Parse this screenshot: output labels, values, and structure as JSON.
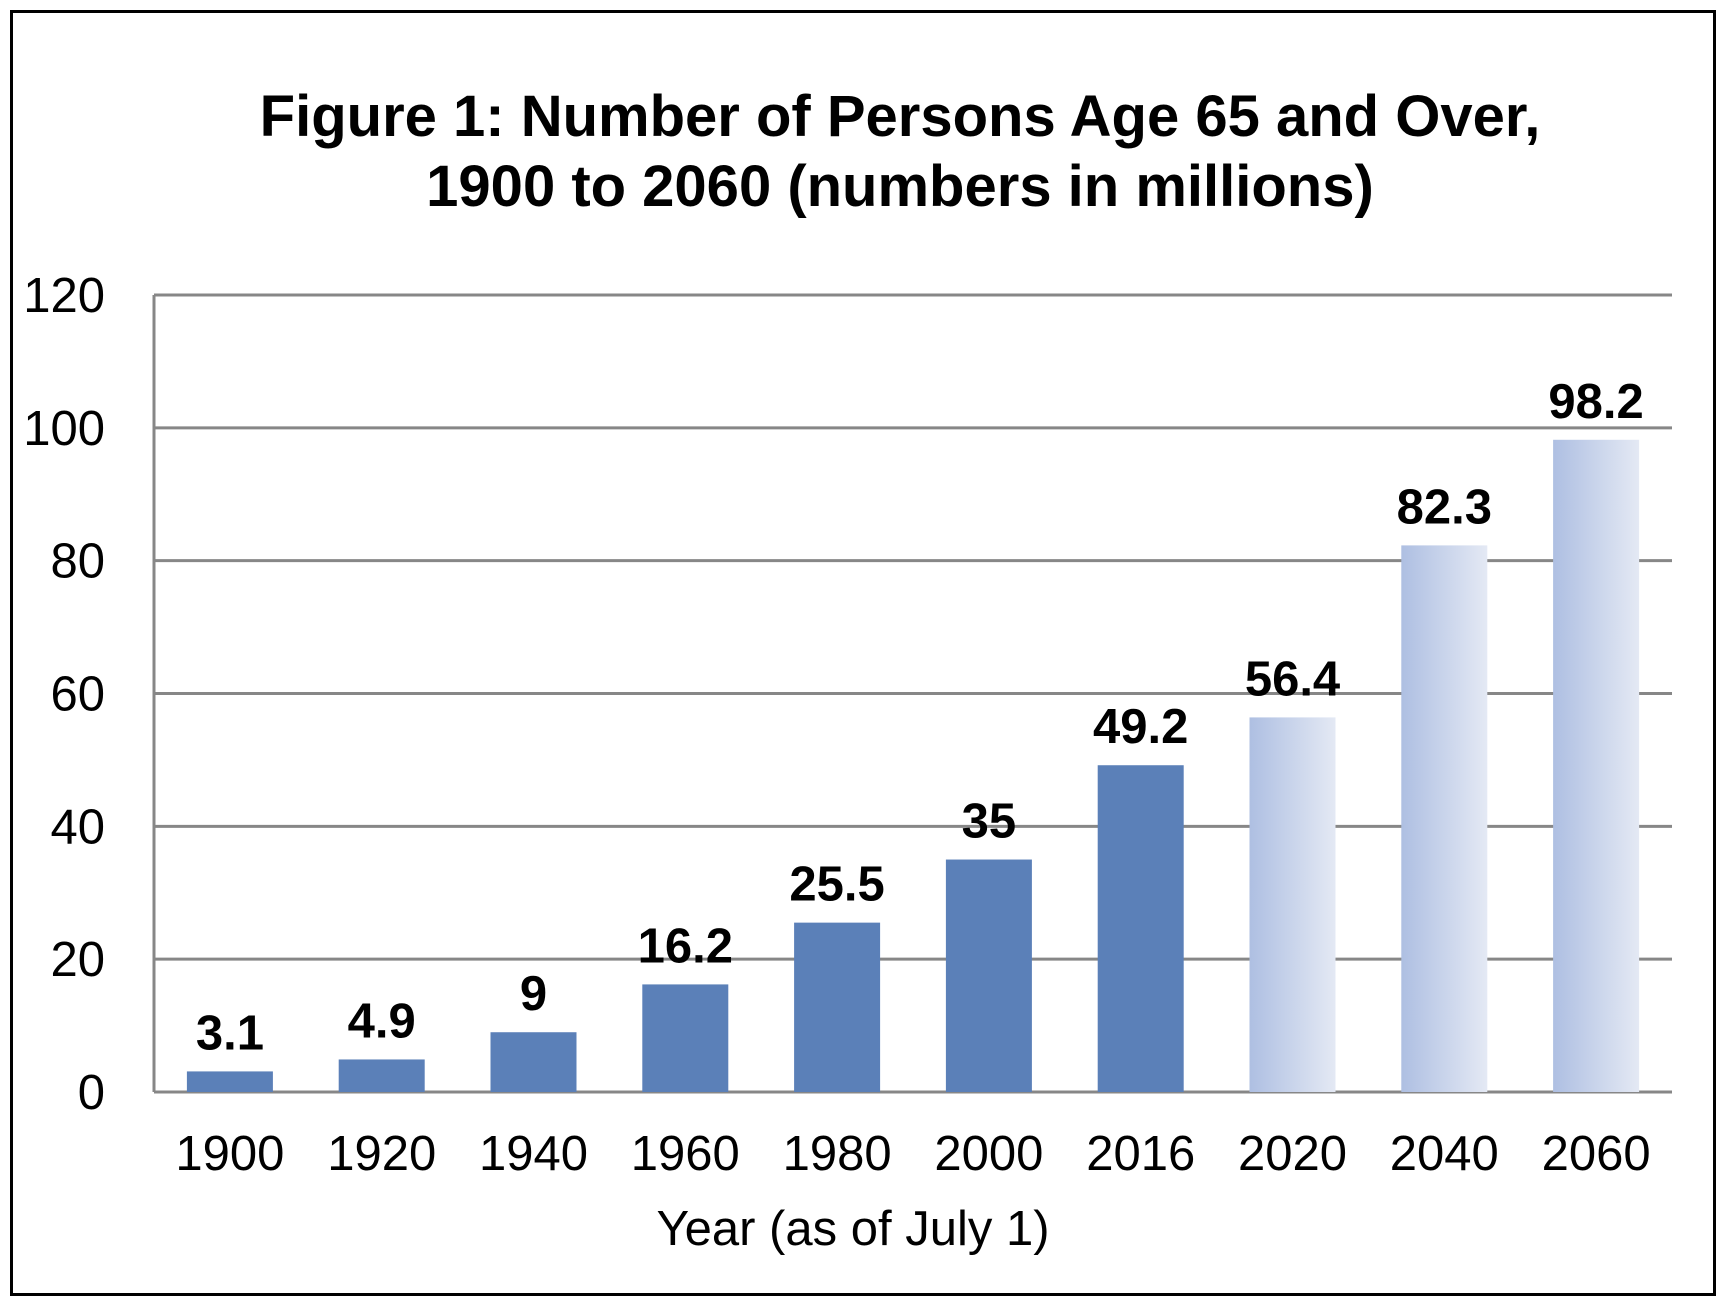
{
  "chart_data": {
    "type": "bar",
    "title_line1": "Figure 1:  Number of Persons Age 65 and Over,",
    "title_line2": "1900 to 2060 (numbers in millions)",
    "xlabel": "Year (as of July 1)",
    "ylabel": "",
    "ylim": [
      0,
      120
    ],
    "yticks": [
      0,
      20,
      40,
      60,
      80,
      100,
      120
    ],
    "grid": true,
    "categories": [
      "1900",
      "1920",
      "1940",
      "1960",
      "1980",
      "2000",
      "2016",
      "2020",
      "2040",
      "2060"
    ],
    "values": [
      3.1,
      4.9,
      9,
      16.2,
      25.5,
      35,
      49.2,
      56.4,
      82.3,
      98.2
    ],
    "value_labels": [
      "3.1",
      "4.9",
      "9",
      "16.2",
      "25.5",
      "35",
      "49.2",
      "56.4",
      "82.3",
      "98.2"
    ],
    "projected": [
      false,
      false,
      false,
      false,
      false,
      false,
      false,
      true,
      true,
      true
    ],
    "colors": {
      "bar_actual": "#5b80b8",
      "bar_projected_start": "#aebfe2",
      "bar_projected_end": "#e4e9f4",
      "gridline": "#878787",
      "frame": "#000000"
    }
  }
}
